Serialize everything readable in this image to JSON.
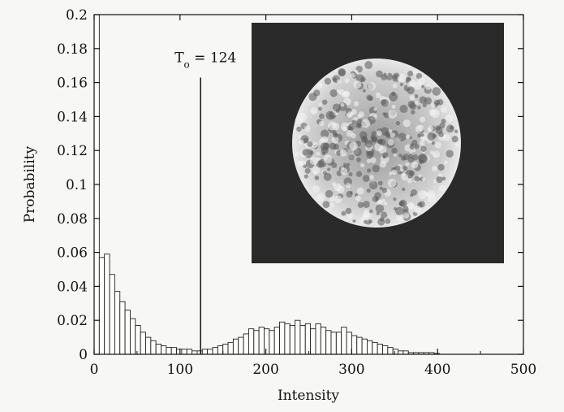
{
  "chart_data": {
    "type": "bar",
    "xlabel": "Intensity",
    "ylabel": "Probability",
    "xlim": [
      0,
      500
    ],
    "ylim": [
      0,
      0.2
    ],
    "x_ticks": [
      "0",
      "100",
      "200",
      "300",
      "400",
      "500"
    ],
    "y_ticks": [
      "0",
      "0.02",
      "0.04",
      "0.06",
      "0.08",
      "0.1",
      "0.12",
      "0.14",
      "0.16",
      "0.18",
      "0.2"
    ],
    "bin_width": 6,
    "bins": [
      {
        "x": 0,
        "y": 0.2
      },
      {
        "x": 6,
        "y": 0.057
      },
      {
        "x": 12,
        "y": 0.059
      },
      {
        "x": 18,
        "y": 0.047
      },
      {
        "x": 24,
        "y": 0.037
      },
      {
        "x": 30,
        "y": 0.031
      },
      {
        "x": 36,
        "y": 0.026
      },
      {
        "x": 42,
        "y": 0.021
      },
      {
        "x": 48,
        "y": 0.017
      },
      {
        "x": 54,
        "y": 0.013
      },
      {
        "x": 60,
        "y": 0.01
      },
      {
        "x": 66,
        "y": 0.008
      },
      {
        "x": 72,
        "y": 0.006
      },
      {
        "x": 78,
        "y": 0.005
      },
      {
        "x": 84,
        "y": 0.004
      },
      {
        "x": 90,
        "y": 0.004
      },
      {
        "x": 96,
        "y": 0.003
      },
      {
        "x": 102,
        "y": 0.003
      },
      {
        "x": 108,
        "y": 0.003
      },
      {
        "x": 114,
        "y": 0.002
      },
      {
        "x": 120,
        "y": 0.002
      },
      {
        "x": 126,
        "y": 0.003
      },
      {
        "x": 132,
        "y": 0.003
      },
      {
        "x": 138,
        "y": 0.004
      },
      {
        "x": 144,
        "y": 0.005
      },
      {
        "x": 150,
        "y": 0.006
      },
      {
        "x": 156,
        "y": 0.007
      },
      {
        "x": 162,
        "y": 0.009
      },
      {
        "x": 168,
        "y": 0.01
      },
      {
        "x": 174,
        "y": 0.012
      },
      {
        "x": 180,
        "y": 0.015
      },
      {
        "x": 186,
        "y": 0.014
      },
      {
        "x": 192,
        "y": 0.016
      },
      {
        "x": 198,
        "y": 0.015
      },
      {
        "x": 204,
        "y": 0.014
      },
      {
        "x": 210,
        "y": 0.016
      },
      {
        "x": 216,
        "y": 0.019
      },
      {
        "x": 222,
        "y": 0.018
      },
      {
        "x": 228,
        "y": 0.017
      },
      {
        "x": 234,
        "y": 0.02
      },
      {
        "x": 240,
        "y": 0.017
      },
      {
        "x": 246,
        "y": 0.018
      },
      {
        "x": 252,
        "y": 0.015
      },
      {
        "x": 258,
        "y": 0.018
      },
      {
        "x": 264,
        "y": 0.016
      },
      {
        "x": 270,
        "y": 0.014
      },
      {
        "x": 276,
        "y": 0.013
      },
      {
        "x": 282,
        "y": 0.013
      },
      {
        "x": 288,
        "y": 0.016
      },
      {
        "x": 294,
        "y": 0.013
      },
      {
        "x": 300,
        "y": 0.011
      },
      {
        "x": 306,
        "y": 0.01
      },
      {
        "x": 312,
        "y": 0.009
      },
      {
        "x": 318,
        "y": 0.008
      },
      {
        "x": 324,
        "y": 0.007
      },
      {
        "x": 330,
        "y": 0.006
      },
      {
        "x": 336,
        "y": 0.005
      },
      {
        "x": 342,
        "y": 0.004
      },
      {
        "x": 348,
        "y": 0.003
      },
      {
        "x": 354,
        "y": 0.002
      },
      {
        "x": 360,
        "y": 0.002
      },
      {
        "x": 366,
        "y": 0.001
      },
      {
        "x": 372,
        "y": 0.001
      },
      {
        "x": 378,
        "y": 0.001
      },
      {
        "x": 384,
        "y": 0.001
      },
      {
        "x": 390,
        "y": 0.001
      },
      {
        "x": 396,
        "y": 0.0005
      }
    ],
    "threshold": {
      "value": 124,
      "label_base": "T",
      "label_sub": "o",
      "label_rest": " = 124"
    },
    "inset": {
      "kind": "grayscale-image",
      "colors": {
        "background": "#2a2a2a",
        "blob": "#e0e0e0"
      }
    },
    "grid": false,
    "legend": "none"
  }
}
